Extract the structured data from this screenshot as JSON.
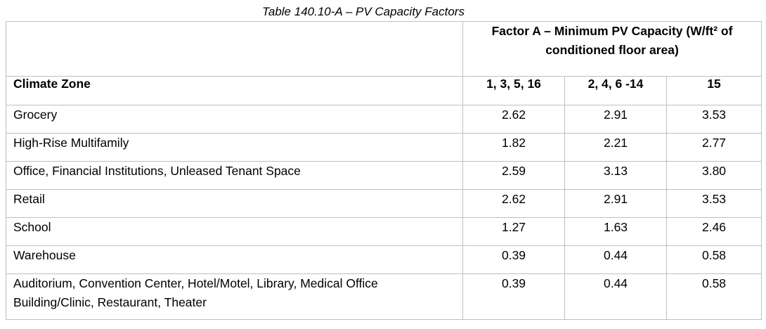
{
  "caption": "Table 140.10-A – PV Capacity Factors",
  "header": {
    "factor_label": "Factor A – Minimum PV Capacity (W/ft² of conditioned floor area)",
    "climate_zone_label": "Climate Zone",
    "zones": [
      "1, 3, 5, 16",
      "2, 4, 6 -14",
      "15"
    ]
  },
  "rows": [
    {
      "building": "Grocery",
      "values": [
        "2.62",
        "2.91",
        "3.53"
      ]
    },
    {
      "building": "High-Rise Multifamily",
      "values": [
        "1.82",
        "2.21",
        "2.77"
      ]
    },
    {
      "building": "Office, Financial Institutions, Unleased Tenant Space",
      "values": [
        "2.59",
        "3.13",
        "3.80"
      ]
    },
    {
      "building": "Retail",
      "values": [
        "2.62",
        "2.91",
        "3.53"
      ]
    },
    {
      "building": "School",
      "values": [
        "1.27",
        "1.63",
        "2.46"
      ]
    },
    {
      "building": "Warehouse",
      "values": [
        "0.39",
        "0.44",
        "0.58"
      ]
    },
    {
      "building": "Auditorium, Convention Center, Hotel/Motel, Library, Medical Office Building/Clinic, Restaurant, Theater",
      "values": [
        "0.39",
        "0.44",
        "0.58"
      ]
    }
  ]
}
